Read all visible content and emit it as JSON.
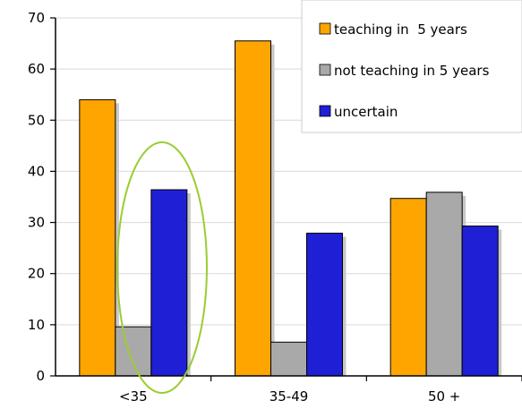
{
  "chart_data": {
    "type": "bar",
    "title": "",
    "xlabel": "",
    "ylabel": "",
    "categories": [
      "<35",
      "35-49",
      "50 +"
    ],
    "ylim": [
      0,
      70
    ],
    "yticks": [
      0,
      10,
      20,
      30,
      40,
      50,
      60,
      70
    ],
    "grid": true,
    "legend_position": "top-right",
    "series": [
      {
        "name": "teaching in  5 years",
        "color": "#FFA500",
        "values": [
          54,
          65.5,
          34.7
        ]
      },
      {
        "name": "not teaching in 5 years",
        "color": "#A9A9A9",
        "values": [
          9.6,
          6.6,
          35.9
        ]
      },
      {
        "name": "uncertain",
        "color": "#1F1FD6",
        "values": [
          36.4,
          27.9,
          29.3
        ]
      }
    ],
    "annotation": {
      "shape": "ellipse",
      "color": "#9ACD32",
      "highlights": "<35 uncertain"
    }
  }
}
